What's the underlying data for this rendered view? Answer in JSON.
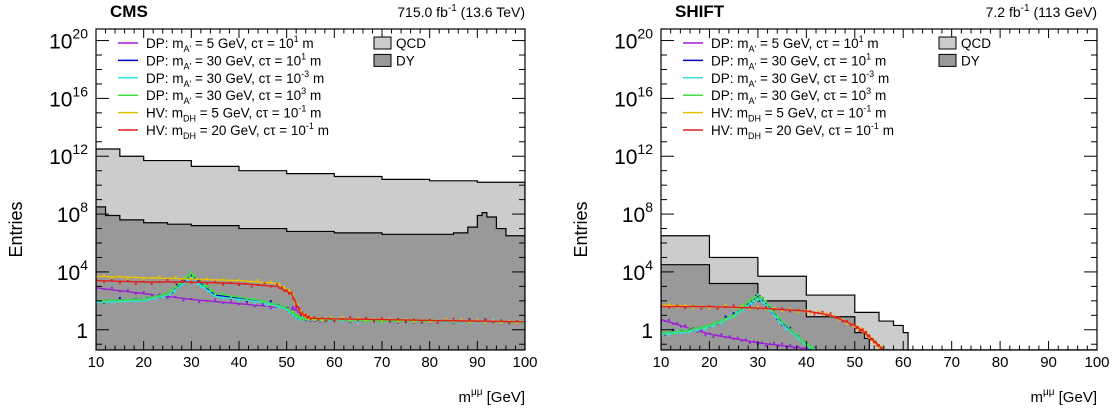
{
  "chart_data": [
    {
      "type": "area",
      "title": "CMS",
      "lumi_label": "715.0 fb",
      "lumi_exp": "-1",
      "energy_label": "(13.6 TeV)",
      "xlabel_main": "m",
      "xlabel_sup": "μμ",
      "xlabel_unit": "[GeV]",
      "ylabel": "Entries",
      "xlim": [
        10,
        100
      ],
      "ylim_log10": [
        -1.4,
        20.8
      ],
      "y_scale": "log",
      "xticks": [
        10,
        20,
        30,
        40,
        50,
        60,
        70,
        80,
        90,
        100
      ],
      "yticks": [
        {
          "base": "1",
          "exp": ""
        },
        {
          "base": "10",
          "exp": "4"
        },
        {
          "base": "10",
          "exp": "8"
        },
        {
          "base": "10",
          "exp": "12"
        },
        {
          "base": "10",
          "exp": "16"
        },
        {
          "base": "10",
          "exp": "20"
        }
      ],
      "background_series": [
        {
          "name": "QCD",
          "color": "#cccccc",
          "x": [
            10,
            15,
            20,
            30,
            40,
            50,
            60,
            70,
            80,
            90,
            100
          ],
          "log10_values": [
            12.5,
            12.0,
            11.7,
            11.3,
            11.0,
            10.8,
            10.6,
            10.4,
            10.3,
            10.2,
            10.0
          ]
        },
        {
          "name": "DY",
          "color": "#999999",
          "x": [
            10,
            12,
            15,
            20,
            25,
            30,
            40,
            50,
            60,
            70,
            80,
            85,
            88,
            90,
            91,
            92,
            94,
            96,
            100
          ],
          "log10_values": [
            8.5,
            7.9,
            7.6,
            7.4,
            7.3,
            7.2,
            7.0,
            6.8,
            6.7,
            6.6,
            6.6,
            6.7,
            7.1,
            7.9,
            8.1,
            7.8,
            7.0,
            6.5,
            6.3
          ]
        }
      ],
      "signal_series": [
        {
          "label_pre": "DP: m",
          "label_sub": "A'",
          "label_mid": " = 5 GeV, cτ = 10",
          "label_sup": "1",
          "label_post": " m",
          "color": "#9b1ed6",
          "x": [
            10,
            20,
            30,
            40,
            50,
            52,
            54,
            60,
            70,
            80,
            90,
            100
          ],
          "log10_values": [
            2.9,
            2.5,
            2.1,
            1.8,
            1.5,
            1.4,
            0.7,
            0.7,
            0.6,
            0.6,
            0.6,
            0.5
          ]
        },
        {
          "label_pre": "DP: m",
          "label_sub": "A'",
          "label_mid": " = 30 GeV, cτ = 10",
          "label_sup": "1",
          "label_post": " m",
          "color": "#0000cc",
          "x": [
            10,
            20,
            25,
            28,
            30,
            32,
            35,
            45,
            50,
            52,
            54,
            60,
            70,
            80,
            90,
            100
          ],
          "log10_values": [
            2.0,
            2.1,
            2.5,
            3.2,
            3.7,
            3.2,
            2.4,
            2.0,
            1.5,
            1.0,
            0.7,
            0.7,
            0.6,
            0.6,
            0.6,
            0.5
          ]
        },
        {
          "label_pre": "DP: m",
          "label_sub": "A'",
          "label_mid": " = 30 GeV, cτ = 10",
          "label_sup": "-3",
          "label_post": " m",
          "color": "#33e0e0",
          "x": [
            10,
            20,
            25,
            28,
            30,
            32,
            35,
            45,
            50,
            52,
            54,
            60,
            70,
            80,
            90,
            100
          ],
          "log10_values": [
            1.9,
            2.0,
            2.4,
            3.1,
            3.6,
            3.1,
            2.3,
            1.9,
            1.4,
            0.9,
            0.7,
            0.7,
            0.6,
            0.6,
            0.6,
            0.5
          ]
        },
        {
          "label_pre": "DP: m",
          "label_sub": "A'",
          "label_mid": " = 30 GeV, cτ = 10",
          "label_sup": "3",
          "label_post": " m",
          "color": "#44dd44",
          "x": [
            10,
            20,
            25,
            28,
            30,
            32,
            35,
            45,
            50,
            52,
            54,
            60,
            70,
            80,
            90,
            100
          ],
          "log10_values": [
            2.0,
            2.1,
            2.5,
            3.3,
            3.9,
            3.3,
            2.5,
            2.0,
            1.5,
            1.0,
            0.7,
            0.7,
            0.6,
            0.6,
            0.6,
            0.5
          ]
        },
        {
          "label_pre": "HV: m",
          "label_sub": "DH",
          "label_mid": " = 5 GeV, cτ = 10",
          "label_sup": "-1",
          "label_post": " m",
          "color": "#e6c200",
          "x": [
            10,
            20,
            30,
            40,
            48,
            51,
            53,
            55,
            60,
            70,
            80,
            90,
            100
          ],
          "log10_values": [
            3.7,
            3.6,
            3.5,
            3.4,
            3.2,
            2.6,
            1.1,
            0.8,
            0.75,
            0.7,
            0.65,
            0.6,
            0.55
          ]
        },
        {
          "label_pre": "HV: m",
          "label_sub": "DH",
          "label_mid": " = 20 GeV, cτ = 10",
          "label_sup": "-1",
          "label_post": " m",
          "color": "#e02020",
          "x": [
            10,
            20,
            30,
            40,
            48,
            51,
            53,
            55,
            60,
            70,
            80,
            90,
            100
          ],
          "log10_values": [
            3.4,
            3.3,
            3.3,
            3.2,
            3.0,
            2.5,
            1.1,
            0.8,
            0.75,
            0.7,
            0.65,
            0.6,
            0.55
          ]
        }
      ]
    },
    {
      "type": "area",
      "title": "SHIFT",
      "lumi_label": "7.2 fb",
      "lumi_exp": "-1",
      "energy_label": "(113 GeV)",
      "xlabel_main": "m",
      "xlabel_sup": "μμ",
      "xlabel_unit": "[GeV]",
      "ylabel": "Entries",
      "xlim": [
        10,
        100
      ],
      "ylim_log10": [
        -1.4,
        20.8
      ],
      "y_scale": "log",
      "xticks": [
        10,
        20,
        30,
        40,
        50,
        60,
        70,
        80,
        90,
        100
      ],
      "yticks": [
        {
          "base": "1",
          "exp": ""
        },
        {
          "base": "10",
          "exp": "4"
        },
        {
          "base": "10",
          "exp": "8"
        },
        {
          "base": "10",
          "exp": "12"
        },
        {
          "base": "10",
          "exp": "16"
        },
        {
          "base": "10",
          "exp": "20"
        }
      ],
      "background_series": [
        {
          "name": "QCD",
          "color": "#cccccc",
          "x": [
            10,
            20,
            30,
            40,
            50,
            55,
            58,
            60,
            61,
            100
          ],
          "log10_values": [
            6.5,
            5.0,
            3.7,
            2.4,
            1.2,
            0.6,
            0.3,
            -0.2,
            -1.4,
            -1.4
          ]
        },
        {
          "name": "DY",
          "color": "#999999",
          "x": [
            10,
            20,
            30,
            40,
            50,
            52,
            53,
            100
          ],
          "log10_values": [
            4.5,
            3.2,
            2.0,
            0.9,
            -0.2,
            -0.6,
            -1.4,
            -1.4
          ]
        }
      ],
      "signal_series": [
        {
          "label_pre": "DP: m",
          "label_sub": "A'",
          "label_mid": " = 5 GeV, cτ = 10",
          "label_sup": "1",
          "label_post": " m",
          "color": "#9b1ed6",
          "x": [
            10,
            15,
            20,
            25,
            30,
            35,
            40,
            42
          ],
          "log10_values": [
            0.7,
            0.2,
            -0.3,
            -0.6,
            -0.9,
            -1.1,
            -1.3,
            -1.4
          ]
        },
        {
          "label_pre": "DP: m",
          "label_sub": "A'",
          "label_mid": " = 30 GeV, cτ = 10",
          "label_sup": "1",
          "label_post": " m",
          "color": "#0000cc",
          "x": [
            10,
            15,
            20,
            25,
            28,
            30,
            32,
            35,
            40,
            42
          ],
          "log10_values": [
            -0.2,
            -0.1,
            0.3,
            1.0,
            1.8,
            2.3,
            1.7,
            0.5,
            -1.0,
            -1.4
          ]
        },
        {
          "label_pre": "DP: m",
          "label_sub": "A'",
          "label_mid": " = 30 GeV, cτ = 10",
          "label_sup": "-3",
          "label_post": " m",
          "color": "#33e0e0",
          "x": [
            10,
            15,
            20,
            25,
            28,
            30,
            32,
            35,
            40,
            42
          ],
          "log10_values": [
            -0.3,
            -0.2,
            0.2,
            0.9,
            1.7,
            2.2,
            1.6,
            0.4,
            -1.1,
            -1.4
          ]
        },
        {
          "label_pre": "DP: m",
          "label_sub": "A'",
          "label_mid": " = 30 GeV, cτ = 10",
          "label_sup": "3",
          "label_post": " m",
          "color": "#44dd44",
          "x": [
            10,
            15,
            20,
            25,
            28,
            30,
            32,
            35,
            40,
            42
          ],
          "log10_values": [
            -0.2,
            -0.1,
            0.3,
            1.0,
            1.9,
            2.4,
            1.8,
            0.6,
            -1.0,
            -1.4
          ]
        },
        {
          "label_pre": "HV: m",
          "label_sub": "DH",
          "label_mid": " = 5 GeV, cτ = 10",
          "label_sup": "-1",
          "label_post": " m",
          "color": "#e6c200",
          "x": [
            10,
            20,
            30,
            40,
            45,
            50,
            52,
            54,
            56
          ],
          "log10_values": [
            1.7,
            1.6,
            1.5,
            1.3,
            1.0,
            0.3,
            -0.2,
            -0.8,
            -1.4
          ]
        },
        {
          "label_pre": "HV: m",
          "label_sub": "DH",
          "label_mid": " = 20 GeV, cτ = 10",
          "label_sup": "-1",
          "label_post": " m",
          "color": "#e02020",
          "x": [
            10,
            20,
            30,
            40,
            45,
            50,
            52,
            54,
            56
          ],
          "log10_values": [
            1.6,
            1.6,
            1.5,
            1.3,
            1.0,
            0.3,
            -0.2,
            -0.8,
            -1.4
          ]
        }
      ]
    }
  ]
}
